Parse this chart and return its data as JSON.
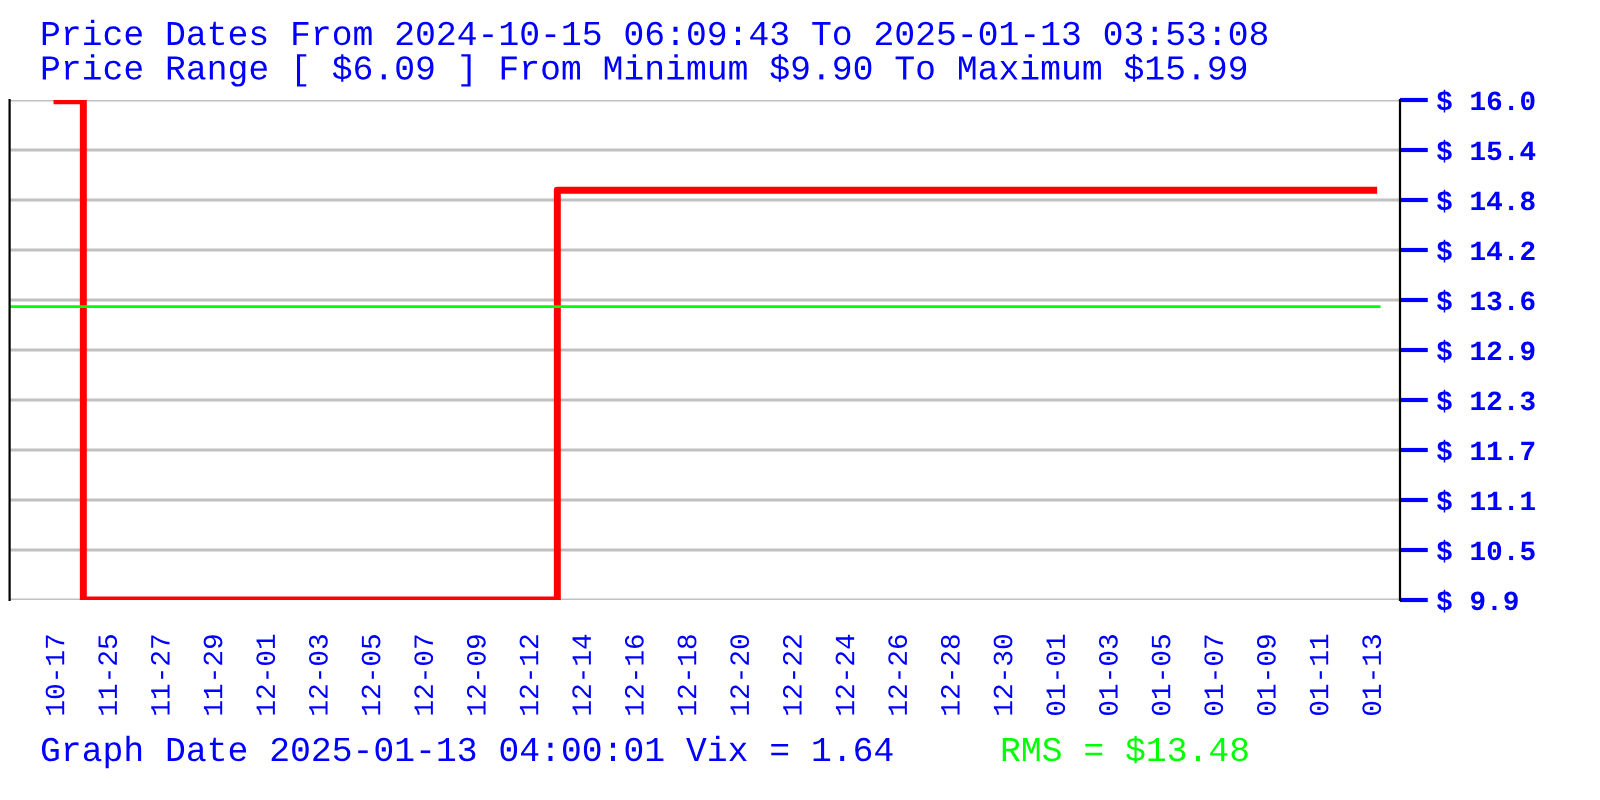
{
  "chart_data": {
    "type": "step",
    "title": "Price Dates From 2024-10-15 06:09:43 To 2025-01-13 03:53:08",
    "subtitle": "Price Range [ $6.09 ] From Minimum $9.90 To Maximum $15.99",
    "categories": [
      "10-17",
      "11-25",
      "11-27",
      "11-29",
      "12-01",
      "12-03",
      "12-05",
      "12-07",
      "12-09",
      "12-12",
      "12-14",
      "12-16",
      "12-18",
      "12-20",
      "12-22",
      "12-24",
      "12-26",
      "12-28",
      "12-30",
      "01-01",
      "01-03",
      "01-05",
      "01-07",
      "01-09",
      "01-11",
      "01-13"
    ],
    "series": [
      {
        "color": "#ff0000",
        "values": [
          15.99,
          9.9,
          9.9,
          9.9,
          9.9,
          9.9,
          9.9,
          9.9,
          9.9,
          9.9,
          14.9,
          14.9,
          14.9,
          14.9,
          14.9,
          14.9,
          14.9,
          14.9,
          14.9,
          14.9,
          14.9,
          14.9,
          14.9,
          14.9,
          14.9,
          14.9
        ]
      }
    ],
    "ylim": [
      9.9,
      16.0
    ],
    "yticks": [
      {
        "value": 9.9,
        "label": "$ 9.9"
      },
      {
        "value": 10.51,
        "label": "$ 10.5"
      },
      {
        "value": 11.12,
        "label": "$ 11.1"
      },
      {
        "value": 11.73,
        "label": "$ 11.7"
      },
      {
        "value": 12.34,
        "label": "$ 12.3"
      },
      {
        "value": 12.95,
        "label": "$ 12.9"
      },
      {
        "value": 13.56,
        "label": "$ 13.6"
      },
      {
        "value": 14.17,
        "label": "$ 14.2"
      },
      {
        "value": 14.78,
        "label": "$ 14.8"
      },
      {
        "value": 15.39,
        "label": "$ 15.4"
      },
      {
        "value": 16.0,
        "label": "$ 16.0"
      }
    ],
    "ref_lines": [
      {
        "axis": "y",
        "value": 13.48,
        "color": "#00ff00",
        "label": "RMS = $13.48"
      }
    ],
    "grid": "y",
    "annotations": [
      "Graph Date 2025-01-13 04:00:01 Vix = 1.64"
    ]
  }
}
